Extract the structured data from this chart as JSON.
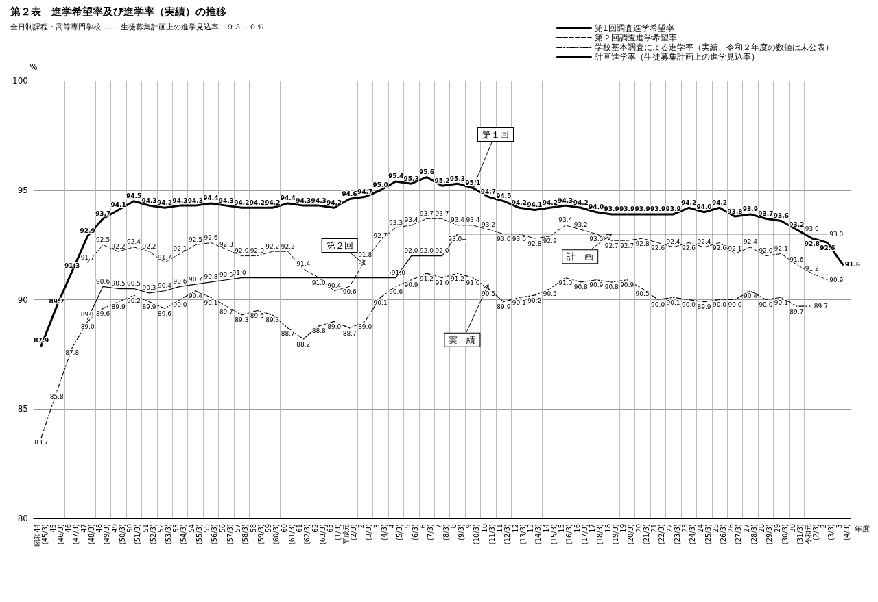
{
  "chart_data": {
    "type": "line",
    "title": "第２表　進学希望率及び進学率（実績）の推移",
    "subtitle": "全日制課程・高等専門学校 …… 生徒募集計画上の進学見込率　９３．０％",
    "xlabel": "年度",
    "ylabel": "%",
    "categories": [
      "昭和44\n(45/3)",
      "45\n(46/3)",
      "46\n(47/3)",
      "47\n(48/3)",
      "48\n(49/3)",
      "49\n(50/3)",
      "50\n(51/3)",
      "51\n(52/3)",
      "52\n(53/3)",
      "53\n(54/3)",
      "54\n(55/3)",
      "55\n(56/3)",
      "56\n(57/3)",
      "57\n(58/3)",
      "58\n(59/3)",
      "59\n(60/3)",
      "60\n(61/3)",
      "61\n(62/3)",
      "62\n(63/3)",
      "63\n(1/3)",
      "平成元\n(2/3)",
      "2\n(3/3)",
      "3\n(4/3)",
      "4\n(5/3)",
      "5\n(6/3)",
      "6\n(7/3)",
      "7\n(8/3)",
      "8\n(9/3)",
      "9\n(10/3)",
      "10\n(11/3)",
      "11\n(12/3)",
      "12\n(13/3)",
      "13\n(14/3)",
      "14\n(15/3)",
      "15\n(16/3)",
      "16\n(17/3)",
      "17\n(18/3)",
      "18\n(19/3)",
      "19\n(20/3)",
      "20\n(21/3)",
      "21\n(22/3)",
      "22\n(23/3)",
      "23\n(24/3)",
      "24\n(25/3)",
      "25\n(26/3)",
      "26\n(27/3)",
      "27\n(28/3)",
      "28\n(29/3)",
      "29\n(30/3)",
      "30\n(31/3)",
      "令和元\n(2/3)",
      "2\n(3/3)",
      "3\n(4/3)"
    ],
    "series": [
      {
        "name": "第1回調査進学希望率",
        "color": "#000000",
        "line_style": "solid",
        "values": [
          87.9,
          89.7,
          91.3,
          92.9,
          93.7,
          94.1,
          94.5,
          94.3,
          94.2,
          94.3,
          94.3,
          94.4,
          94.3,
          94.2,
          94.2,
          94.2,
          94.4,
          94.3,
          94.3,
          94.2,
          94.6,
          94.7,
          95.0,
          95.4,
          95.3,
          95.6,
          95.2,
          95.3,
          95.1,
          94.7,
          94.5,
          94.2,
          94.1,
          94.2,
          94.3,
          94.2,
          94.0,
          93.9,
          93.9,
          93.9,
          93.9,
          93.9,
          94.2,
          94.0,
          94.2,
          93.8,
          93.9,
          93.7,
          93.6,
          93.2,
          92.8,
          92.6,
          91.6
        ],
        "value_labels": [
          "87.9",
          "89.7",
          "91.3",
          "92.9",
          "93.7",
          "94.1",
          "94.5",
          "94.3",
          "94.2",
          "94.3",
          "94.3",
          "94.4",
          "94.3",
          "94.2",
          "94.2",
          "94.2",
          "94.4",
          "94.3",
          "94.3",
          "94.2",
          "94.6",
          "94.7",
          "95.0",
          "95.4",
          "95.3",
          "95.6",
          "95.2",
          "95.3",
          "95.1",
          "94.7",
          "94.5",
          "94.2",
          "94.1",
          "94.2",
          "94.3",
          "94.2",
          "94.0",
          "93.9",
          "93.9",
          "93.9",
          "93.9",
          "93.9",
          "94.2",
          "94.0",
          "94.2",
          "93.8",
          "93.9",
          "93.7",
          "93.6",
          "93.2",
          "92.8",
          "92.6",
          "91.6"
        ]
      },
      {
        "name": "第２回調査進学希望率",
        "color": "#000000",
        "line_style": "dashed",
        "values": [
          null,
          null,
          null,
          91.7,
          92.5,
          92.2,
          92.4,
          92.2,
          91.7,
          92.1,
          92.5,
          92.6,
          92.3,
          92.0,
          92.0,
          92.2,
          92.2,
          91.4,
          91.0,
          90.4,
          90.6,
          91.8,
          92.7,
          93.3,
          93.4,
          93.7,
          93.7,
          93.4,
          93.4,
          93.2,
          93.0,
          93.0,
          92.8,
          92.9,
          93.4,
          93.2,
          93.0,
          92.7,
          92.7,
          92.8,
          92.6,
          92.4,
          92.6,
          92.4,
          92.6,
          92.1,
          92.4,
          92.0,
          92.1,
          91.6,
          91.2,
          90.9,
          null
        ],
        "value_labels": [
          null,
          null,
          null,
          "91.7",
          "92.5",
          "92.2",
          "92.4",
          "92.2",
          "91.7",
          "92.1",
          "92.5",
          "92.6",
          "92.3",
          "92.0",
          "92.0",
          "92.2",
          "92.2",
          "91.4",
          "91.0",
          "90.4",
          "90.6",
          "91.8",
          "92.7",
          "93.3",
          "93.4",
          "93.7",
          "93.7",
          "93.4",
          "93.4",
          "93.2",
          "93.0",
          "93.0",
          "92.8",
          "92.9",
          "93.4",
          "93.2",
          "93.0",
          "92.7",
          "92.7",
          "92.8",
          "92.6",
          "92.4",
          "92.6",
          "92.4",
          "92.6",
          "92.1",
          "92.4",
          "92.0",
          "92.1",
          "91.6",
          "91.2",
          "90.9",
          null
        ]
      },
      {
        "name": "学校基本調査による進学率（実績、令和２年度の数値は未公表）",
        "color": "#000000",
        "line_style": "dotted",
        "values": [
          83.7,
          85.8,
          87.8,
          89.0,
          89.6,
          89.9,
          90.2,
          89.9,
          89.6,
          90.0,
          90.4,
          90.1,
          89.7,
          89.3,
          89.5,
          89.3,
          88.7,
          88.2,
          88.8,
          89.0,
          88.7,
          89.0,
          90.1,
          90.6,
          90.9,
          91.2,
          91.0,
          91.2,
          91.0,
          90.5,
          89.9,
          90.1,
          90.2,
          90.5,
          91.0,
          90.8,
          90.9,
          90.8,
          90.9,
          90.5,
          90.0,
          90.1,
          90.0,
          89.9,
          90.0,
          90.0,
          90.4,
          90.0,
          90.1,
          89.7,
          89.7,
          null,
          null
        ],
        "value_labels": [
          "83.7",
          "85.8",
          "87.8",
          "89.0",
          "89.6",
          "89.9",
          "90.2",
          "89.9",
          "89.6",
          "90.0",
          "90.4",
          "90.1",
          "89.7",
          "89.3",
          "89.5",
          "89.3",
          "88.7",
          "88.2",
          "88.8",
          "89.0",
          "88.7",
          "89.0",
          "90.1",
          "90.6",
          "90.9",
          "91.2",
          "91.0",
          "91.2",
          "91.0",
          "90.5",
          "89.9",
          "90.1",
          "90.2",
          "90.5",
          "91.0",
          "90.8",
          "90.9",
          "90.8",
          "90.9",
          "90.5",
          "90.0",
          "90.1",
          "90.0",
          "89.9",
          "90.0",
          "90.0",
          "90.4",
          "90.0",
          "90.1",
          "89.7",
          "89.7",
          null,
          null
        ]
      },
      {
        "name": "計画進学率（生徒募集計画上の進学見込率）",
        "color": "#000000",
        "line_style": "solid",
        "values": [
          null,
          null,
          null,
          89.1,
          90.6,
          90.5,
          90.5,
          90.3,
          90.4,
          90.6,
          90.7,
          90.8,
          90.9,
          91.0,
          91.0,
          91.0,
          91.0,
          91.0,
          91.0,
          91.0,
          91.0,
          91.0,
          91.0,
          91.0,
          92.0,
          92.0,
          92.0,
          93.0,
          93.0,
          93.0,
          93.0,
          93.0,
          93.0,
          93.0,
          93.0,
          93.0,
          93.0,
          93.0,
          93.0,
          93.0,
          93.0,
          93.0,
          93.0,
          93.0,
          93.0,
          93.0,
          93.0,
          93.0,
          93.0,
          93.0,
          93.0,
          93.0,
          null
        ],
        "value_labels": [
          null,
          null,
          null,
          "89.1",
          "90.6",
          "90.5",
          "90.5",
          "90.3",
          "90.4",
          "90.6",
          "90.7",
          "90.8",
          "90.9",
          "91.0→",
          null,
          null,
          null,
          null,
          null,
          null,
          null,
          null,
          null,
          "→91.0",
          "92.0",
          "92.0",
          "92.0",
          "93.0→",
          null,
          null,
          null,
          null,
          null,
          null,
          null,
          null,
          null,
          null,
          null,
          null,
          null,
          null,
          null,
          null,
          null,
          null,
          null,
          null,
          null,
          null,
          "93.0",
          "93.0",
          null
        ]
      }
    ],
    "ylim": [
      80,
      100
    ],
    "yticks": [
      80,
      85,
      90,
      95,
      100
    ],
    "grid": true,
    "legend": "top right",
    "marker": "none",
    "annotations": [
      {
        "text": "第１回",
        "x": "9\n(10/3)",
        "y": 95.1
      },
      {
        "text": "第２回",
        "x": "2\n(3/3)",
        "y": 91.6
      },
      {
        "text": "計　画",
        "x": "18\n(19/3)",
        "y": 93.0
      },
      {
        "text": "実　績",
        "x": "10\n(11/3)",
        "y": 90.7
      }
    ]
  }
}
